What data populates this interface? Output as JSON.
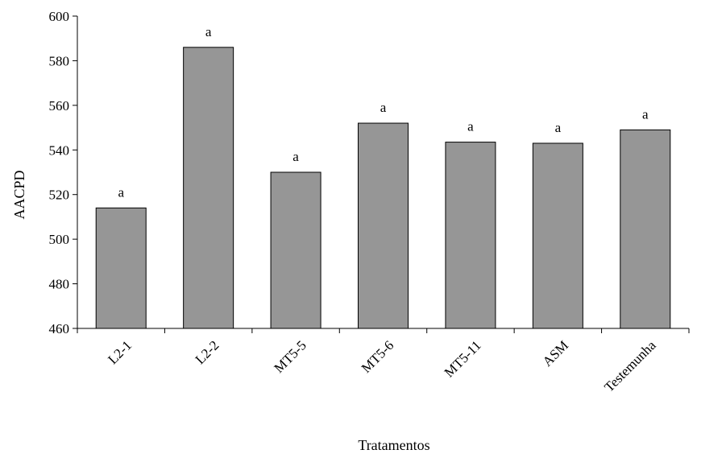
{
  "chart_data": {
    "type": "bar",
    "categories": [
      "L2-1",
      "L2-2",
      "MT5-5",
      "MT5-6",
      "MT5-11",
      "ASM",
      "Testemunha"
    ],
    "values": [
      514,
      586,
      530,
      552,
      543.5,
      543,
      549
    ],
    "data_labels": [
      "a",
      "a",
      "a",
      "a",
      "a",
      "a",
      "a"
    ],
    "title": "",
    "xlabel": "Tratamentos",
    "ylabel": "AACPD",
    "ylim": [
      460,
      600
    ],
    "yticks": [
      460,
      480,
      500,
      520,
      540,
      560,
      580,
      600
    ],
    "grid": false,
    "legend": "none",
    "bar_color": "#969696"
  }
}
